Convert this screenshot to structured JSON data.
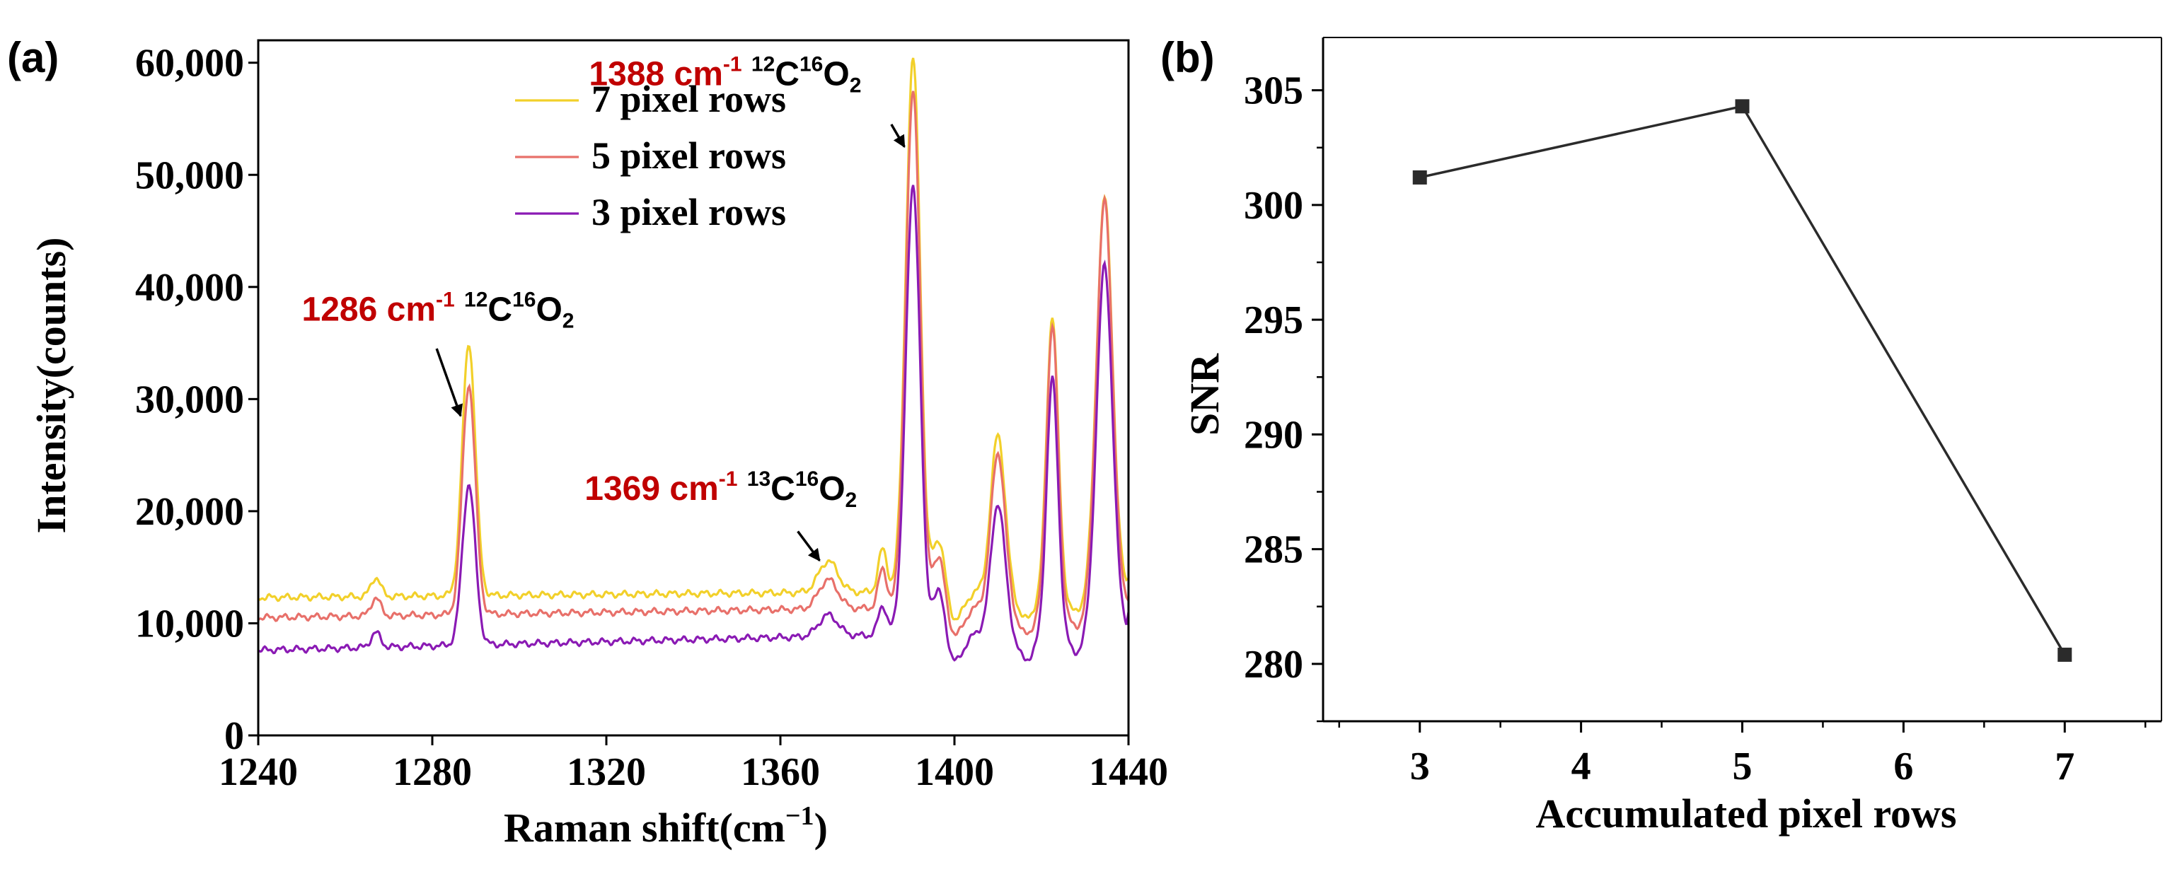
{
  "panel_a_label": "(a)",
  "panel_b_label": "(b)",
  "colors": {
    "rows7": "#f2d02a",
    "rows5": "#e8706a",
    "rows3": "#8a1ab4",
    "annotation": "#c00000",
    "axis": "#000000",
    "line_b": "#2b2b2b"
  },
  "chart_data": [
    {
      "type": "line",
      "xlabel": "Raman shift(cm",
      "xlabel_sup": "−1",
      "xlabel_end": ")",
      "ylabel": "Intensity(counts)",
      "xlim": [
        1240,
        1440
      ],
      "ylim": [
        0,
        62000
      ],
      "xticks": [
        1240,
        1280,
        1320,
        1360,
        1400,
        1440
      ],
      "xtick_labels": [
        "1240",
        "1280",
        "1320",
        "1360",
        "1400",
        "1440"
      ],
      "yticks": [
        0,
        10000,
        20000,
        30000,
        40000,
        50000,
        60000
      ],
      "ytick_labels": [
        "0",
        "10,000",
        "20,000",
        "30,000",
        "40,000",
        "50,000",
        "60,000"
      ],
      "legend_position": "top-center",
      "series": [
        {
          "name": "7 pixel rows",
          "key": "rows7",
          "baseline_start": 12300,
          "baseline_end": 13000,
          "peaks": [
            [
              1267,
              1700
            ],
            [
              1288.4,
              22500
            ],
            [
              1371,
              2800
            ],
            [
              1383.5,
              3800
            ],
            [
              1390.5,
              47500
            ],
            [
              1396.5,
              5000
            ],
            [
              1410,
              14000
            ],
            [
              1422.5,
              24500
            ],
            [
              1434.5,
              35000
            ]
          ],
          "end_value": 14000
        },
        {
          "name": "5 pixel rows",
          "key": "rows5",
          "baseline_start": 10500,
          "baseline_end": 11700,
          "peaks": [
            [
              1267,
              1600
            ],
            [
              1288.4,
              20500
            ],
            [
              1371,
              2600
            ],
            [
              1383.5,
              3500
            ],
            [
              1390.5,
              46000
            ],
            [
              1396.5,
              4900
            ],
            [
              1410,
              13700
            ],
            [
              1422.5,
              25000
            ],
            [
              1434.5,
              36000
            ]
          ],
          "end_value": 12000
        },
        {
          "name": "3 pixel rows",
          "key": "rows3",
          "baseline_start": 7600,
          "baseline_end": 9500,
          "peaks": [
            [
              1267,
              1300
            ],
            [
              1288.4,
              14300
            ],
            [
              1371,
              1900
            ],
            [
              1383.5,
              2600
            ],
            [
              1390.5,
              40000
            ],
            [
              1396.5,
              4200
            ],
            [
              1410,
              11500
            ],
            [
              1422.5,
              22500
            ],
            [
              1434.5,
              32500
            ]
          ],
          "end_value": 11000
        }
      ],
      "annotations": [
        {
          "value": "1286 cm",
          "sup": "-1",
          "species_mass": "12",
          "species_C": "C",
          "species_mass2": "16",
          "species_O": "O",
          "species_sub": "2",
          "x": 1250,
          "y": 37000,
          "arrow_from": [
            1281,
            34500
          ],
          "arrow_to": [
            1286.5,
            28500
          ]
        },
        {
          "value": "1369 cm",
          "sup": "-1",
          "species_mass": "13",
          "species_C": "C",
          "species_mass2": "16",
          "species_O": "O",
          "species_sub": "2",
          "x": 1315,
          "y": 21000,
          "arrow_from": [
            1364,
            18200
          ],
          "arrow_to": [
            1369,
            15600
          ]
        },
        {
          "value": "1388 cm",
          "sup": "-1",
          "species_mass": "12",
          "species_C": "C",
          "species_mass2": "16",
          "species_O": "O",
          "species_sub": "2",
          "x": 1316,
          "y": 58000,
          "arrow_from": [
            1385.5,
            54500
          ],
          "arrow_to": [
            1388.5,
            52500
          ]
        }
      ]
    },
    {
      "type": "line",
      "xlabel": "Accumulated pixel rows",
      "ylabel": "SNR",
      "xlim": [
        2.4,
        7.6
      ],
      "ylim": [
        277.5,
        307.3
      ],
      "xticks": [
        3,
        4,
        5,
        6,
        7
      ],
      "xtick_labels": [
        "3",
        "4",
        "5",
        "6",
        "7"
      ],
      "yticks": [
        280,
        285,
        290,
        295,
        300,
        305
      ],
      "ytick_labels": [
        "280",
        "285",
        "290",
        "295",
        "300",
        "305"
      ],
      "x": [
        3,
        5,
        7
      ],
      "y": [
        301.2,
        304.3,
        280.4
      ]
    }
  ]
}
